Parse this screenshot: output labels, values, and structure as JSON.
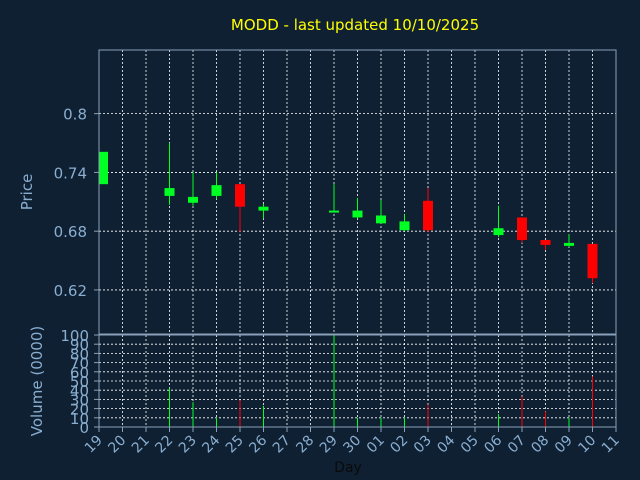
{
  "chart_data": {
    "type": "candlestick",
    "title": "MODD - last updated 10/10/2025",
    "xlabel": "Day",
    "price_panel": {
      "ylabel": "Price",
      "ylim": [
        0.575,
        0.865
      ],
      "yticks": [
        0.62,
        0.68,
        0.74,
        0.8
      ],
      "ytick_labels": [
        "0.62",
        "0.68",
        "0.74",
        "0.8"
      ],
      "grid": true
    },
    "volume_panel": {
      "ylabel": "Volume (0000)",
      "ylim": [
        0,
        100
      ],
      "yticks": [
        0,
        10,
        20,
        30,
        40,
        50,
        60,
        70,
        80,
        90,
        100
      ],
      "ytick_labels": [
        "0",
        "10",
        "20",
        "30",
        "40",
        "50",
        "60",
        "70",
        "80",
        "90",
        "100"
      ],
      "grid": true
    },
    "x_tick_labels": [
      "19",
      "20",
      "21",
      "22",
      "23",
      "24",
      "25",
      "26",
      "27",
      "28",
      "29",
      "30",
      "01",
      "02",
      "03",
      "04",
      "05",
      "06",
      "07",
      "08",
      "09",
      "10",
      "11"
    ],
    "candles": [
      {
        "day": "19",
        "open": 0.728,
        "high": 0.761,
        "low": 0.728,
        "close": 0.761,
        "volume": 0
      },
      {
        "day": "22",
        "open": 0.716,
        "high": 0.77,
        "low": 0.707,
        "close": 0.724,
        "volume": 42
      },
      {
        "day": "23",
        "open": 0.709,
        "high": 0.74,
        "low": 0.706,
        "close": 0.715,
        "volume": 27
      },
      {
        "day": "24",
        "open": 0.716,
        "high": 0.74,
        "low": 0.713,
        "close": 0.727,
        "volume": 10
      },
      {
        "day": "25",
        "open": 0.728,
        "high": 0.728,
        "low": 0.679,
        "close": 0.705,
        "volume": 29
      },
      {
        "day": "26",
        "open": 0.701,
        "high": 0.708,
        "low": 0.693,
        "close": 0.705,
        "volume": 23
      },
      {
        "day": "29",
        "open": 0.699,
        "high": 0.728,
        "low": 0.699,
        "close": 0.701,
        "volume": 100
      },
      {
        "day": "30",
        "open": 0.694,
        "high": 0.714,
        "low": 0.693,
        "close": 0.701,
        "volume": 10
      },
      {
        "day": "01",
        "open": 0.688,
        "high": 0.712,
        "low": 0.688,
        "close": 0.696,
        "volume": 10
      },
      {
        "day": "02",
        "open": 0.681,
        "high": 0.697,
        "low": 0.68,
        "close": 0.69,
        "volume": 10
      },
      {
        "day": "03",
        "open": 0.711,
        "high": 0.724,
        "low": 0.679,
        "close": 0.681,
        "volume": 24
      },
      {
        "day": "06",
        "open": 0.676,
        "high": 0.706,
        "low": 0.674,
        "close": 0.683,
        "volume": 14
      },
      {
        "day": "07",
        "open": 0.694,
        "high": 0.694,
        "low": 0.668,
        "close": 0.671,
        "volume": 33
      },
      {
        "day": "08",
        "open": 0.671,
        "high": 0.671,
        "low": 0.661,
        "close": 0.666,
        "volume": 17
      },
      {
        "day": "09",
        "open": 0.665,
        "high": 0.677,
        "low": 0.664,
        "close": 0.668,
        "volume": 10
      },
      {
        "day": "10",
        "open": 0.667,
        "high": 0.667,
        "low": 0.627,
        "close": 0.632,
        "volume": 55
      }
    ],
    "colors": {
      "background": "#0f2033",
      "grid": "#ffffff",
      "axis": "#8aa0b8",
      "tick_label": "#8aaed0",
      "title": "#ffff00",
      "up": "#00ff22",
      "down": "#ff0000"
    }
  }
}
